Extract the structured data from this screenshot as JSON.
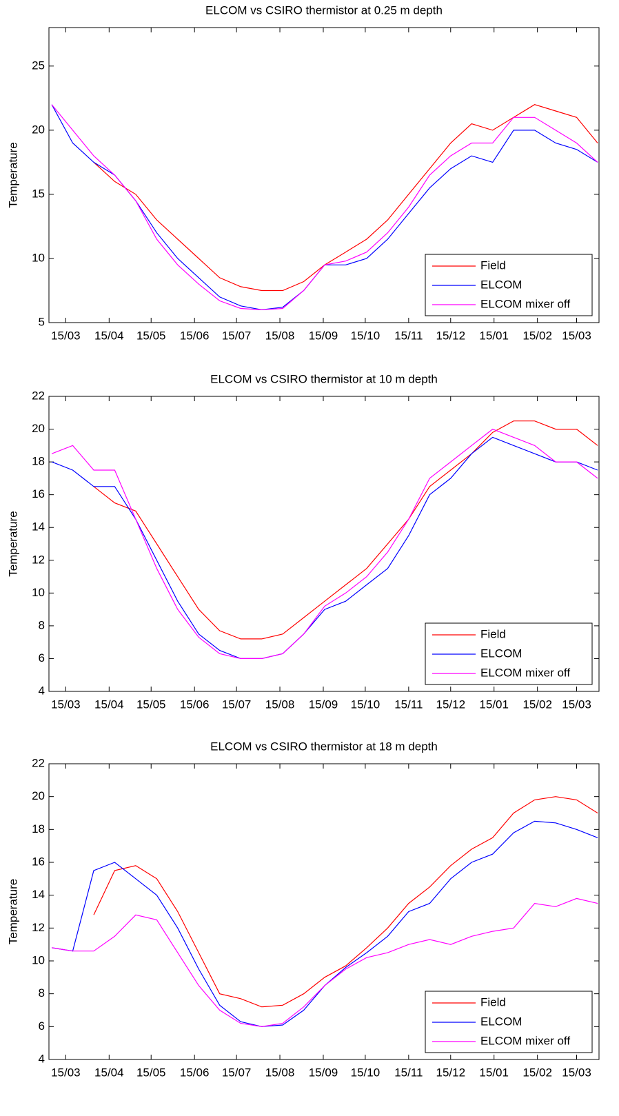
{
  "chart_data": [
    {
      "type": "line",
      "title": "ELCOM vs CSIRO thermistor at 0.25 m depth",
      "ylabel": "Temperature",
      "x": [
        -10,
        5,
        20,
        35,
        50,
        65,
        80,
        95,
        110,
        125,
        140,
        155,
        170,
        185,
        200,
        215,
        230,
        245,
        260,
        275,
        290,
        305,
        320,
        335,
        350,
        365,
        380
      ],
      "xlim": [
        -12,
        381
      ],
      "xticks": [
        {
          "value": 0,
          "label": "15/03"
        },
        {
          "value": 31,
          "label": "15/04"
        },
        {
          "value": 61,
          "label": "15/05"
        },
        {
          "value": 92,
          "label": "15/06"
        },
        {
          "value": 122,
          "label": "15/07"
        },
        {
          "value": 153,
          "label": "15/08"
        },
        {
          "value": 184,
          "label": "15/09"
        },
        {
          "value": 214,
          "label": "15/10"
        },
        {
          "value": 245,
          "label": "15/11"
        },
        {
          "value": 275,
          "label": "15/12"
        },
        {
          "value": 306,
          "label": "15/01"
        },
        {
          "value": 337,
          "label": "15/02"
        },
        {
          "value": 365,
          "label": "15/03"
        }
      ],
      "ylim": [
        5,
        28
      ],
      "yticks": [
        5,
        10,
        15,
        20,
        25
      ],
      "legend": "lower right",
      "series": [
        {
          "name": "Field",
          "color": "#ff0000",
          "values": [
            null,
            null,
            17.5,
            16,
            15,
            13,
            11.5,
            10,
            8.5,
            7.8,
            7.5,
            7.5,
            8.2,
            9.5,
            10.5,
            11.5,
            13,
            15,
            17,
            19,
            20.5,
            20,
            21,
            22,
            21.5,
            21,
            19
          ]
        },
        {
          "name": "ELCOM",
          "color": "#0000ff",
          "values": [
            22,
            19,
            17.5,
            16.5,
            14.5,
            12,
            10,
            8.5,
            7,
            6.3,
            6,
            6.2,
            7.5,
            9.5,
            9.5,
            10,
            11.5,
            13.5,
            15.5,
            17,
            18,
            17.5,
            20,
            20,
            19,
            18.5,
            17.5
          ]
        },
        {
          "name": "ELCOM mixer off",
          "color": "#ff00ff",
          "values": [
            22,
            20,
            18,
            16.5,
            14.5,
            11.5,
            9.5,
            8,
            6.7,
            6.1,
            6,
            6.1,
            7.5,
            9.5,
            9.8,
            10.5,
            12,
            14,
            16.5,
            18,
            19,
            19,
            21,
            21,
            20,
            19,
            17.5
          ]
        }
      ]
    },
    {
      "type": "line",
      "title": "ELCOM vs CSIRO thermistor at 10 m depth",
      "ylabel": "Temperature",
      "x": [
        -10,
        5,
        20,
        35,
        50,
        65,
        80,
        95,
        110,
        125,
        140,
        155,
        170,
        185,
        200,
        215,
        230,
        245,
        260,
        275,
        290,
        305,
        320,
        335,
        350,
        365,
        380
      ],
      "xlim": [
        -12,
        381
      ],
      "xticks": [
        {
          "value": 0,
          "label": "15/03"
        },
        {
          "value": 31,
          "label": "15/04"
        },
        {
          "value": 61,
          "label": "15/05"
        },
        {
          "value": 92,
          "label": "15/06"
        },
        {
          "value": 122,
          "label": "15/07"
        },
        {
          "value": 153,
          "label": "15/08"
        },
        {
          "value": 184,
          "label": "15/09"
        },
        {
          "value": 214,
          "label": "15/10"
        },
        {
          "value": 245,
          "label": "15/11"
        },
        {
          "value": 275,
          "label": "15/12"
        },
        {
          "value": 306,
          "label": "15/01"
        },
        {
          "value": 337,
          "label": "15/02"
        },
        {
          "value": 365,
          "label": "15/03"
        }
      ],
      "ylim": [
        4,
        22
      ],
      "yticks": [
        4,
        6,
        8,
        10,
        12,
        14,
        16,
        18,
        20,
        22
      ],
      "legend": "lower right",
      "series": [
        {
          "name": "Field",
          "color": "#ff0000",
          "values": [
            null,
            null,
            16.5,
            15.5,
            15,
            13,
            11,
            9,
            7.7,
            7.2,
            7.2,
            7.5,
            8.5,
            9.5,
            10.5,
            11.5,
            13,
            14.5,
            16.5,
            17.5,
            18.5,
            19.8,
            20.5,
            20.5,
            20,
            20,
            19
          ]
        },
        {
          "name": "ELCOM",
          "color": "#0000ff",
          "values": [
            18,
            17.5,
            16.5,
            16.5,
            14.5,
            12,
            9.5,
            7.5,
            6.5,
            6,
            6,
            6.3,
            7.5,
            9,
            9.5,
            10.5,
            11.5,
            13.5,
            16,
            17,
            18.5,
            19.5,
            19,
            18.5,
            18,
            18,
            17.5
          ]
        },
        {
          "name": "ELCOM mixer off",
          "color": "#ff00ff",
          "values": [
            18.5,
            19,
            17.5,
            17.5,
            14.5,
            11.5,
            9,
            7.3,
            6.3,
            6,
            6,
            6.3,
            7.5,
            9.2,
            10,
            11,
            12.5,
            14.5,
            17,
            18,
            19,
            20,
            19.5,
            19,
            18,
            18,
            17
          ]
        }
      ]
    },
    {
      "type": "line",
      "title": "ELCOM vs CSIRO thermistor at 18 m depth",
      "ylabel": "Temperature",
      "x": [
        -10,
        5,
        20,
        35,
        50,
        65,
        80,
        95,
        110,
        125,
        140,
        155,
        170,
        185,
        200,
        215,
        230,
        245,
        260,
        275,
        290,
        305,
        320,
        335,
        350,
        365,
        380
      ],
      "xlim": [
        -12,
        381
      ],
      "xticks": [
        {
          "value": 0,
          "label": "15/03"
        },
        {
          "value": 31,
          "label": "15/04"
        },
        {
          "value": 61,
          "label": "15/05"
        },
        {
          "value": 92,
          "label": "15/06"
        },
        {
          "value": 122,
          "label": "15/07"
        },
        {
          "value": 153,
          "label": "15/08"
        },
        {
          "value": 184,
          "label": "15/09"
        },
        {
          "value": 214,
          "label": "15/10"
        },
        {
          "value": 245,
          "label": "15/11"
        },
        {
          "value": 275,
          "label": "15/12"
        },
        {
          "value": 306,
          "label": "15/01"
        },
        {
          "value": 337,
          "label": "15/02"
        },
        {
          "value": 365,
          "label": "15/03"
        }
      ],
      "ylim": [
        4,
        22
      ],
      "yticks": [
        4,
        6,
        8,
        10,
        12,
        14,
        16,
        18,
        20,
        22
      ],
      "legend": "lower right",
      "series": [
        {
          "name": "Field",
          "color": "#ff0000",
          "values": [
            null,
            null,
            12.8,
            15.5,
            15.8,
            15,
            13,
            10.5,
            8,
            7.7,
            7.2,
            7.3,
            8,
            9,
            9.7,
            10.8,
            12,
            13.5,
            14.5,
            15.8,
            16.8,
            17.5,
            19,
            19.8,
            20,
            19.8,
            19
          ]
        },
        {
          "name": "ELCOM",
          "color": "#0000ff",
          "values": [
            10.8,
            10.6,
            15.5,
            16,
            15,
            14,
            12,
            9.5,
            7.3,
            6.3,
            6,
            6.1,
            7,
            8.5,
            9.6,
            10.5,
            11.5,
            13,
            13.5,
            15,
            16,
            16.5,
            17.8,
            18.5,
            18.4,
            18,
            17.5
          ]
        },
        {
          "name": "ELCOM mixer off",
          "color": "#ff00ff",
          "values": [
            10.8,
            10.6,
            10.6,
            11.5,
            12.8,
            12.5,
            10.5,
            8.5,
            7,
            6.2,
            6,
            6.2,
            7.2,
            8.5,
            9.5,
            10.2,
            10.5,
            11,
            11.3,
            11,
            11.5,
            11.8,
            12,
            13.5,
            13.3,
            13.8,
            13.5
          ]
        }
      ]
    }
  ]
}
